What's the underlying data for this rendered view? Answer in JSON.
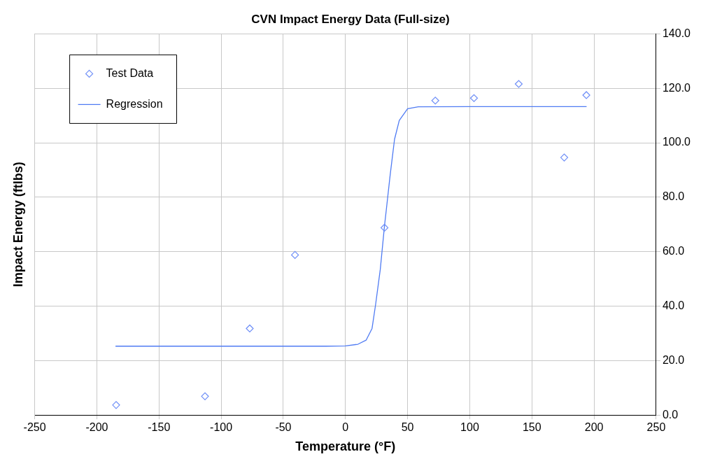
{
  "chart_data": {
    "type": "scatter",
    "title": "CVN Impact Energy Data (Full-size)",
    "xlabel": "Temperature (°F)",
    "ylabel": "Impact Energy (ftlbs)",
    "xlim": [
      -250,
      250
    ],
    "xticks": [
      -250,
      -200,
      -150,
      -100,
      -50,
      0,
      50,
      100,
      150,
      200,
      250
    ],
    "ylim": [
      0,
      140
    ],
    "yticks": [
      {
        "value": 0,
        "label": "0.0"
      },
      {
        "value": 20,
        "label": "20.0"
      },
      {
        "value": 40,
        "label": "40.0"
      },
      {
        "value": 60,
        "label": "60.0"
      },
      {
        "value": 80,
        "label": "80.0"
      },
      {
        "value": 100,
        "label": "100.0"
      },
      {
        "value": 120,
        "label": "120.0"
      },
      {
        "value": 140,
        "label": "140.0"
      }
    ],
    "grid": true,
    "legend": "top left",
    "series": [
      {
        "name": "Test Data",
        "marker": "diamond",
        "color": "#6f8ff7",
        "x": [
          -184.5,
          -113,
          -77,
          -40.6,
          31.4,
          72.3,
          103.4,
          139.4,
          176,
          193.8
        ],
        "values": [
          3.7,
          6.9,
          31.8,
          58.8,
          68.8,
          115.5,
          116.4,
          121.6,
          94.6,
          117.5
        ]
      },
      {
        "name": "Regression",
        "type": "line",
        "marker": "none",
        "color": "#4f7bf3",
        "x": [
          -185,
          -100,
          -15.7,
          0,
          10,
          16.6,
          21.4,
          24.2,
          28,
          31.5,
          32.8,
          36,
          39.5,
          43.3,
          50,
          58.6,
          100,
          150,
          194
        ],
        "values": [
          25.3,
          25.3,
          25.3,
          25.4,
          26,
          27.5,
          31.8,
          40.4,
          53.4,
          69.9,
          75.1,
          88.3,
          101.3,
          108.2,
          112.5,
          113.2,
          113.3,
          113.3,
          113.3
        ]
      }
    ]
  }
}
